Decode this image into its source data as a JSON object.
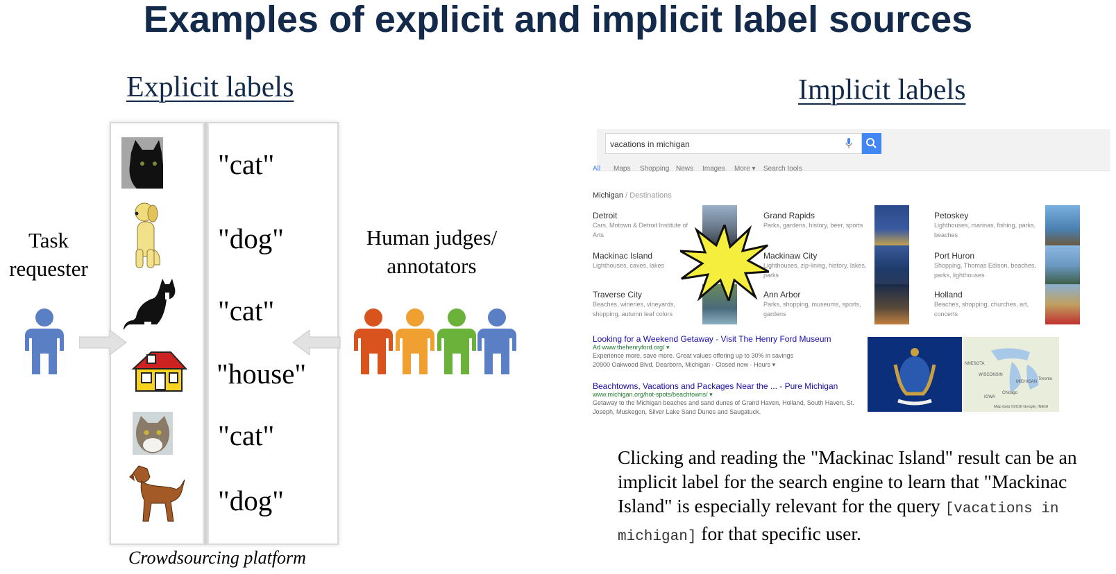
{
  "title": "Examples of explicit and implicit label sources",
  "explicit": {
    "heading": "Explicit labels",
    "labels": [
      "\"cat\"",
      "\"dog\"",
      "\"cat\"",
      "\"house\"",
      "\"cat\"",
      "\"dog\""
    ],
    "platform_caption": "Crowdsourcing platform",
    "task_requester": "Task requester",
    "human_judges": "Human judges/ annotators"
  },
  "implicit": {
    "heading": "Implicit labels",
    "search": {
      "query": "vacations in michigan",
      "tabs": [
        "All",
        "Maps",
        "Shopping",
        "News",
        "Images",
        "More ▾",
        "Search tools"
      ],
      "breadcrumb_main": "Michigan",
      "breadcrumb_sub": "/ Destinations",
      "destinations": [
        {
          "name": "Detroit",
          "desc": "Cars, Motown & Detroit Institute of Arts"
        },
        {
          "name": "Grand Rapids",
          "desc": "Parks, gardens, history, beer, sports"
        },
        {
          "name": "Petoskey",
          "desc": "Lighthouses, marinas, fishing, parks, beaches"
        },
        {
          "name": "Mackinac Island",
          "desc": "Lighthouses, caves, lakes"
        },
        {
          "name": "Mackinaw City",
          "desc": "Lighthouses, zip-lining, history, lakes, parks"
        },
        {
          "name": "Port Huron",
          "desc": "Shopping, Thomas Edison, beaches, parks, lighthouses"
        },
        {
          "name": "Traverse City",
          "desc": "Beaches, wineries, vineyards, shopping, autumn leaf colors"
        },
        {
          "name": "Ann Arbor",
          "desc": "Parks, shopping, museums, sports, gardens"
        },
        {
          "name": "Holland",
          "desc": "Beaches, shopping, churches, art, concerts"
        }
      ],
      "results": [
        {
          "title": "Looking for a Weekend Getaway - Visit The Henry Ford Museum",
          "url": "Ad  www.thehenryford.org/ ▾",
          "snippet": "Experience more, save more. Great values offering up to 30% in savings",
          "snippet2": "20900 Oakwood Blvd, Dearborn, Michigan - Closed now · Hours ▾"
        },
        {
          "title": "Beachtowns, Vacations and Packages Near the ... - Pure Michigan",
          "url": "www.michigan.org/hot-spots/beachtowns/ ▾",
          "snippet": "Getaway to the Michigan beaches and sand dunes of Grand Haven, Holland, South Haven, St.",
          "snippet2": "Joseph, Muskegon, Silver Lake Sand Dunes and Saugatuck."
        }
      ],
      "map_labels": [
        "NNESOTA",
        "WISCONSIN",
        "MICHIGAN",
        "IOWA",
        "Chicago",
        "Toronto",
        "Map data ©2016 Google, INEGI"
      ]
    },
    "explanation_1": "Clicking and reading the \"Mackinac Island\" result can be an implicit label for the search engine to learn that \"Mackinac Island\" is especially relevant for the query",
    "explanation_query": "[vacations in michigan]",
    "explanation_2": " for that specific user."
  },
  "colors": {
    "title": "#132a4b",
    "person_requester": "#5b7fc4",
    "annotators": [
      "#d9531e",
      "#f0a030",
      "#6bb23a",
      "#5b7fc4"
    ],
    "starburst": "#f5ee3c"
  }
}
